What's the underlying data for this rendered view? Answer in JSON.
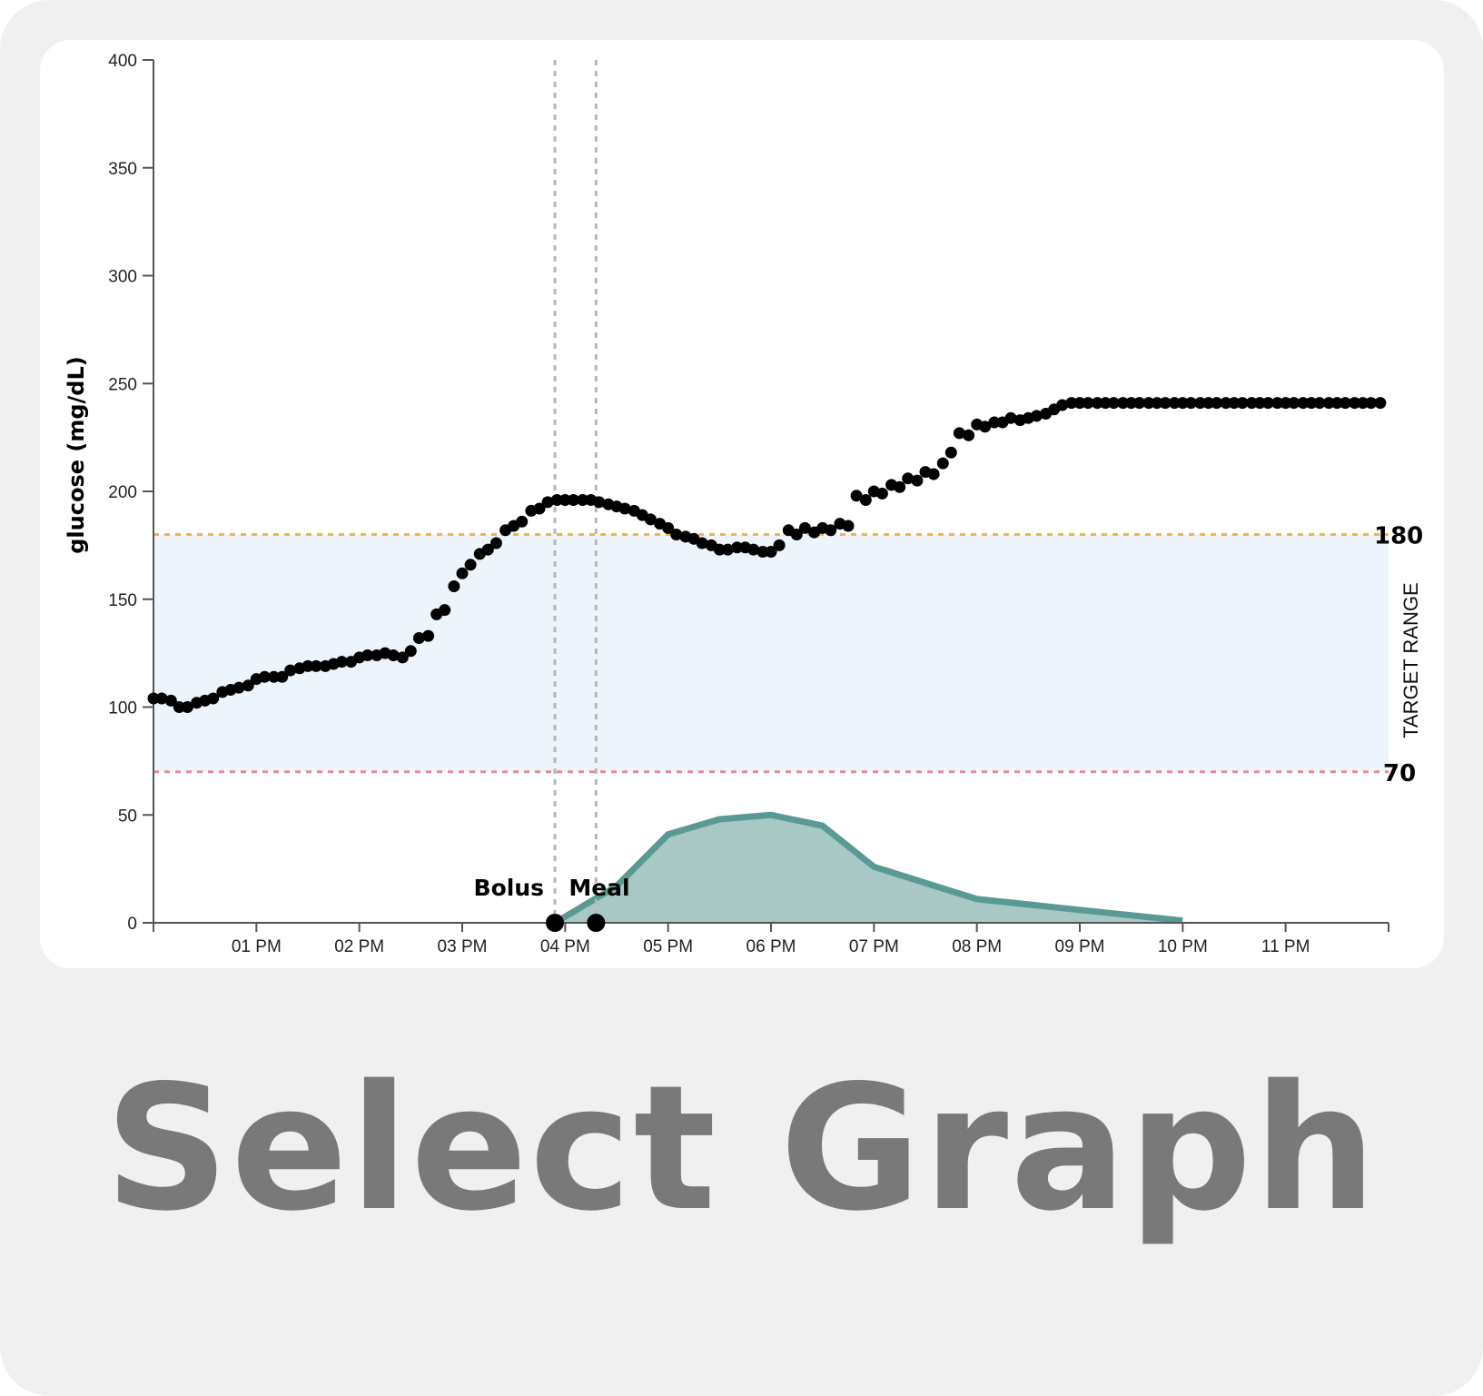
{
  "tile": {
    "label": "Select Graph"
  },
  "chart_data": {
    "type": "scatter",
    "ylabel": "glucose (mg/dL)",
    "ylim": [
      0,
      400
    ],
    "yticks": [
      "0",
      "50",
      "100",
      "150",
      "200",
      "250",
      "300",
      "350",
      "400"
    ],
    "xticks": [
      "01 PM",
      "02 PM",
      "03 PM",
      "04 PM",
      "05 PM",
      "06 PM",
      "07 PM",
      "08 PM",
      "09 PM",
      "10 PM",
      "11 PM"
    ],
    "target_range": {
      "low": 70,
      "high": 180,
      "label": "TARGET RANGE",
      "low_label": "70",
      "high_label": "180"
    },
    "events": {
      "bolus": {
        "label": "Bolus",
        "time": 15.9
      },
      "meal": {
        "label": "Meal",
        "time": 16.3
      }
    },
    "series": [
      {
        "type": "scatter",
        "x": [
          12.0,
          12.08,
          12.17,
          12.25,
          12.33,
          12.42,
          12.5,
          12.58,
          12.67,
          12.75,
          12.83,
          12.92,
          13.0,
          13.08,
          13.17,
          13.25,
          13.33,
          13.42,
          13.5,
          13.58,
          13.67,
          13.75,
          13.83,
          13.92,
          14.0,
          14.08,
          14.17,
          14.25,
          14.33,
          14.42,
          14.5,
          14.58,
          14.67,
          14.75,
          14.83,
          14.92,
          15.0,
          15.08,
          15.17,
          15.25,
          15.33,
          15.42,
          15.5,
          15.58,
          15.67,
          15.75,
          15.83,
          15.92,
          16.0,
          16.08,
          16.17,
          16.25,
          16.33,
          16.42,
          16.5,
          16.58,
          16.67,
          16.75,
          16.83,
          16.92,
          17.0,
          17.08,
          17.17,
          17.25,
          17.33,
          17.42,
          17.5,
          17.58,
          17.67,
          17.75,
          17.83,
          17.92,
          18.0,
          18.08,
          18.17,
          18.25,
          18.33,
          18.42,
          18.5,
          18.58,
          18.67,
          18.75,
          18.83,
          18.92,
          19.0,
          19.08,
          19.17,
          19.25,
          19.33,
          19.42,
          19.5,
          19.58,
          19.67,
          19.75,
          19.83,
          19.92,
          20.0,
          20.08,
          20.17,
          20.25,
          20.33,
          20.42,
          20.5,
          20.58,
          20.67,
          20.75,
          20.83,
          20.92,
          21.0,
          21.08,
          21.17,
          21.25,
          21.33,
          21.42,
          21.5,
          21.58,
          21.67,
          21.75,
          21.83,
          21.92,
          22.0,
          22.08,
          22.17,
          22.25,
          22.33,
          22.42,
          22.5,
          22.58,
          22.67,
          22.75,
          22.83,
          22.92,
          23.0,
          23.08,
          23.17,
          23.25,
          23.33,
          23.42,
          23.5,
          23.58,
          23.67,
          23.75,
          23.83,
          23.92
        ],
        "y": [
          104,
          104,
          103,
          100,
          100,
          102,
          103,
          104,
          107,
          108,
          109,
          110,
          113,
          114,
          114,
          114,
          117,
          118,
          119,
          119,
          119,
          120,
          121,
          121,
          123,
          124,
          124,
          125,
          124,
          123,
          126,
          132,
          133,
          143,
          145,
          156,
          162,
          166,
          171,
          173,
          176,
          182,
          184,
          186,
          191,
          192,
          195,
          196,
          196,
          196,
          196,
          196,
          195,
          194,
          193,
          192,
          191,
          189,
          187,
          185,
          183,
          180,
          179,
          178,
          176,
          175,
          173,
          173,
          174,
          174,
          173,
          172,
          172,
          175,
          182,
          180,
          183,
          181,
          183,
          182,
          185,
          184,
          198,
          196,
          200,
          199,
          203,
          202,
          206,
          205,
          209,
          208,
          213,
          218,
          227,
          226,
          231,
          230,
          232,
          232,
          234,
          233,
          234,
          235,
          236,
          238,
          240,
          241,
          241,
          241,
          241,
          241,
          241,
          241,
          241,
          241,
          241,
          241,
          241,
          241,
          241,
          241,
          241,
          241,
          241,
          241,
          241,
          241,
          241,
          241,
          241,
          241,
          241,
          241,
          241,
          241,
          241,
          241,
          241,
          241,
          241,
          241,
          241,
          241
        ]
      },
      {
        "type": "area",
        "x": [
          15.9,
          16.5,
          17.0,
          17.5,
          18.0,
          18.5,
          19.0,
          20.0,
          21.0,
          22.0
        ],
        "y": [
          0,
          17,
          41,
          48,
          50,
          45,
          26,
          11,
          6,
          1
        ]
      }
    ],
    "colors": {
      "target_fill": "#eef4fc",
      "high_line": "#f2b545",
      "low_line": "#e58c96",
      "area_fill": "#a7c8c5",
      "area_line": "#5a9a94",
      "points": "#000000",
      "event_line": "#b7b7b7",
      "axis": "#555555"
    }
  }
}
